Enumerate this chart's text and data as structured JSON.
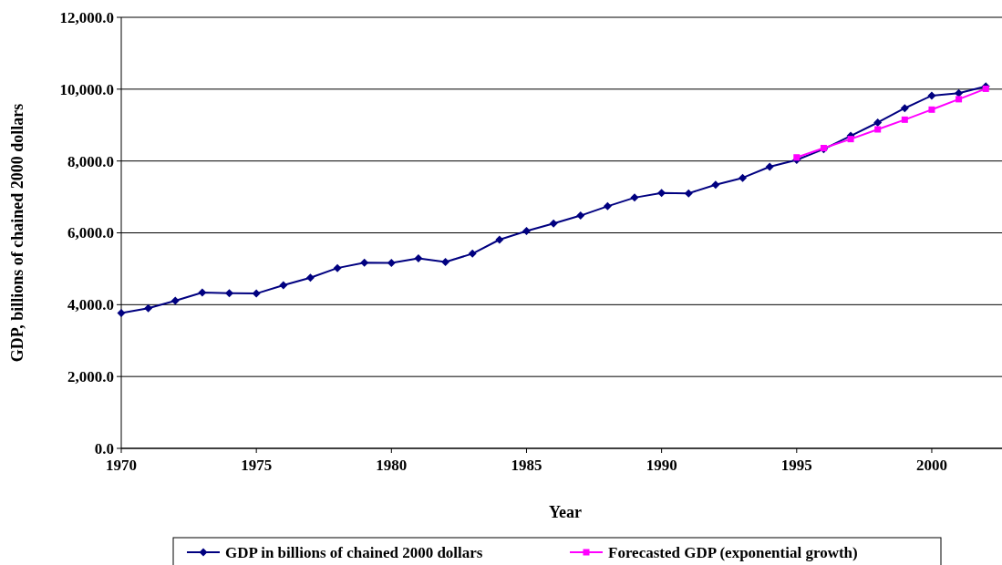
{
  "chart_data": {
    "type": "line",
    "xlabel": "Year",
    "ylabel": "GDP, billions of chained 2000 dollars",
    "xlim": [
      1970,
      2002.6
    ],
    "xticks": [
      1970,
      1975,
      1980,
      1985,
      1990,
      1995,
      2000
    ],
    "ylim": [
      0,
      12000
    ],
    "yticks": [
      {
        "value": 0,
        "label": "0.0"
      },
      {
        "value": 2000,
        "label": "2,000.0"
      },
      {
        "value": 4000,
        "label": "4,000.0"
      },
      {
        "value": 6000,
        "label": "6,000.0"
      },
      {
        "value": 8000,
        "label": "8,000.0"
      },
      {
        "value": 10000,
        "label": "10,000.0"
      },
      {
        "value": 12000,
        "label": "12,000.0"
      }
    ],
    "grid": "y",
    "legend": "bottom",
    "line_style": "solid",
    "series": [
      {
        "name": "GDP in billions of chained 2000 dollars",
        "color": "#000080",
        "marker": "diamond",
        "x": [
          1970,
          1971,
          1972,
          1973,
          1974,
          1975,
          1976,
          1977,
          1978,
          1979,
          1980,
          1981,
          1982,
          1983,
          1984,
          1985,
          1986,
          1987,
          1988,
          1989,
          1990,
          1991,
          1992,
          1993,
          1994,
          1995,
          1996,
          1997,
          1998,
          1999,
          2000,
          2001,
          2002
        ],
        "values": [
          3770,
          3900,
          4110,
          4340,
          4320,
          4310,
          4540,
          4750,
          5020,
          5170,
          5160,
          5290,
          5190,
          5420,
          5810,
          6050,
          6260,
          6480,
          6740,
          6980,
          7110,
          7100,
          7340,
          7530,
          7840,
          8030,
          8330,
          8700,
          9070,
          9470,
          9820,
          9890,
          10080
        ]
      },
      {
        "name": "Forecasted GDP (exponential growth)",
        "color": "#ff00ff",
        "marker": "square",
        "x": [
          1995,
          1996,
          1997,
          1998,
          1999,
          2000,
          2001,
          2002
        ],
        "values": [
          8100,
          8360,
          8610,
          8880,
          9150,
          9430,
          9720,
          10010
        ]
      }
    ]
  }
}
